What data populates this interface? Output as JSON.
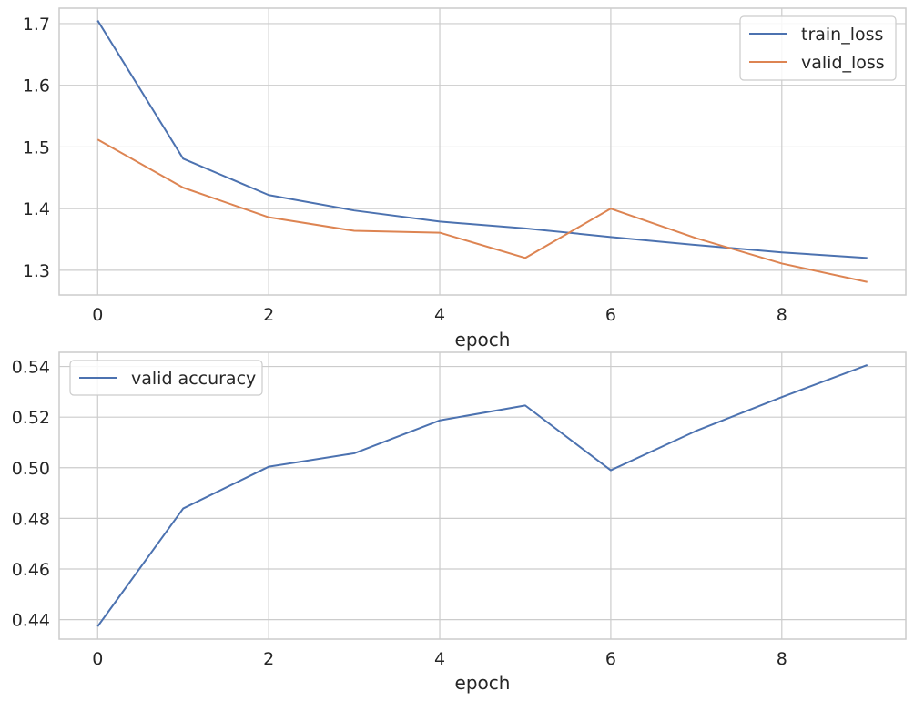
{
  "chart_data": [
    {
      "type": "line",
      "xlabel": "epoch",
      "ylabel": "",
      "x": [
        0,
        1,
        2,
        3,
        4,
        5,
        6,
        7,
        8,
        9
      ],
      "xlim": [
        -0.45,
        9.45
      ],
      "xticks": [
        "0",
        "2",
        "4",
        "6",
        "8"
      ],
      "ylim": [
        1.26,
        1.725
      ],
      "yticks": [
        "1.3",
        "1.4",
        "1.5",
        "1.6",
        "1.7"
      ],
      "grid": true,
      "legend_position": "top-right",
      "series": [
        {
          "name": "train_loss",
          "color": "#4c72b0",
          "values": [
            1.705,
            1.481,
            1.422,
            1.397,
            1.379,
            1.368,
            1.354,
            1.341,
            1.329,
            1.32
          ]
        },
        {
          "name": "valid_loss",
          "color": "#dd8452",
          "values": [
            1.512,
            1.434,
            1.386,
            1.364,
            1.361,
            1.32,
            1.4,
            1.352,
            1.311,
            1.281
          ]
        }
      ]
    },
    {
      "type": "line",
      "xlabel": "epoch",
      "ylabel": "",
      "x": [
        0,
        1,
        2,
        3,
        4,
        5,
        6,
        7,
        8,
        9
      ],
      "xlim": [
        -0.45,
        9.45
      ],
      "xticks": [
        "0",
        "2",
        "4",
        "6",
        "8"
      ],
      "ylim": [
        0.4323,
        0.5456
      ],
      "yticks": [
        "0.44",
        "0.46",
        "0.48",
        "0.50",
        "0.52",
        "0.54"
      ],
      "grid": true,
      "legend_position": "top-left",
      "series": [
        {
          "name": "valid accuracy",
          "color": "#4c72b0",
          "values": [
            0.4373,
            0.4839,
            0.5004,
            0.5057,
            0.5187,
            0.5246,
            0.499,
            0.5146,
            0.5279,
            0.5406
          ]
        }
      ]
    }
  ]
}
